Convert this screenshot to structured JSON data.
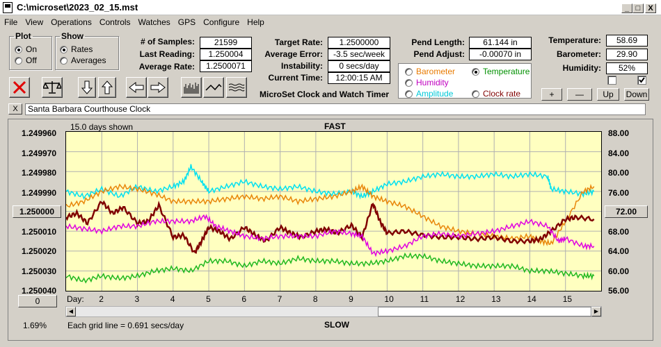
{
  "window": {
    "title": "C:\\microset\\2023_02_15.mst",
    "minimize": "_",
    "maximize": "□",
    "close": "X"
  },
  "menu": [
    "File",
    "View",
    "Operations",
    "Controls",
    "Watches",
    "GPS",
    "Configure",
    "Help"
  ],
  "plot_group": {
    "title": "Plot",
    "options": [
      "On",
      "Off"
    ],
    "selected": "On"
  },
  "show_group": {
    "title": "Show",
    "options": [
      "Rates",
      "Averages"
    ],
    "selected": "Rates"
  },
  "stats": {
    "samples_label": "# of Samples:",
    "samples": "21599",
    "last_reading_label": "Last Reading:",
    "last_reading": "1.250004",
    "average_rate_label": "Average Rate:",
    "average_rate": "1.2500071",
    "target_rate_label": "Target Rate:",
    "target_rate": "1.2500000",
    "average_error_label": "Average Error:",
    "average_error": "-3.5 sec/week",
    "instability_label": "Instability:",
    "instability": "0 secs/day",
    "current_time_label": "Current Time:",
    "current_time": "12:00:15 AM",
    "pend_length_label": "Pend Length:",
    "pend_length": "61.144 in",
    "pend_adjust_label": "Pend Adjust:",
    "pend_adjust": "-0.00070 in",
    "temperature_label": "Temperature:",
    "temperature": "58.69",
    "barometer_label": "Barometer:",
    "barometer": "29.90",
    "humidity_label": "Humidity:",
    "humidity": "52%"
  },
  "app_name": "MicroSet Clock and Watch Timer",
  "secondary_selector": {
    "options": [
      {
        "label": "Barometer",
        "color": "#e87a00",
        "selected": false
      },
      {
        "label": "Temperature",
        "color": "#009000",
        "selected": true
      },
      {
        "label": "Humidity",
        "color": "#c000c0",
        "selected": false
      },
      {
        "label": "Amplitude",
        "color": "#00c8d8",
        "selected": false
      },
      {
        "label": "Clock rate",
        "color": "#800000",
        "selected": false
      }
    ]
  },
  "adjust_buttons": [
    "+",
    "—",
    "Up",
    "Down"
  ],
  "checkboxes": [
    false,
    true
  ],
  "clock_name": "Santa Barbara Courthouse Clock",
  "clear_button": "X",
  "chart_data": {
    "type": "line",
    "top_label": "FAST",
    "bottom_label": "SLOW",
    "days_shown": "15.0 days shown",
    "grid_note": "Each grid line = 0.691 secs/day",
    "x_label": "Day:",
    "x_ticks": [
      "2",
      "3",
      "4",
      "5",
      "6",
      "7",
      "8",
      "9",
      "10",
      "11",
      "12",
      "13",
      "14",
      "15"
    ],
    "xlim": [
      1.0,
      16.0
    ],
    "y_left_ticks": [
      "1.249960",
      "1.249970",
      "1.249980",
      "1.249990",
      "1.250000",
      "1.250010",
      "1.250020",
      "1.250030",
      "1.250040"
    ],
    "y_left_center": "1.250000",
    "ylim_left": [
      1.24996,
      1.25004
    ],
    "y_right_ticks": [
      "88.00",
      "84.00",
      "80.00",
      "76.00",
      "72.00",
      "68.00",
      "64.00",
      "60.00",
      "56.00"
    ],
    "y_right_center": "72.00",
    "ylim_right": [
      56,
      88
    ],
    "left_button": "0",
    "corner_value": "1.69%",
    "series": [
      {
        "name": "Amplitude",
        "color": "#00e0f0",
        "axis": "right",
        "x": [
          1,
          1.5,
          2,
          2.5,
          3,
          3.5,
          4,
          4.3,
          4.5,
          4.8,
          5,
          5.5,
          6,
          6.5,
          7,
          7.5,
          8,
          8.5,
          9,
          9.3,
          9.6,
          10,
          10.5,
          11,
          11.5,
          12,
          12.5,
          13,
          13.5,
          14,
          14.5,
          14.6,
          15,
          15.5,
          15.8
        ],
        "y": [
          76,
          75,
          76.5,
          75,
          77,
          76,
          77,
          78,
          81,
          78,
          76,
          77,
          78,
          77,
          76.5,
          77,
          76,
          75.5,
          76,
          75,
          76,
          77.5,
          78,
          79,
          79.5,
          79,
          79,
          79.5,
          79,
          79.5,
          79,
          76.5,
          76,
          75.5,
          76
        ]
      },
      {
        "name": "Barometer",
        "color": "#e8860a",
        "axis": "right",
        "x": [
          1,
          1.5,
          2,
          2.5,
          3,
          3.5,
          4,
          4.5,
          5,
          5.5,
          6,
          6.5,
          7,
          7.5,
          8,
          8.5,
          9,
          9.3,
          9.6,
          10,
          10.5,
          11,
          11.5,
          12,
          12.5,
          13,
          13.5,
          14,
          14.3,
          14.6,
          15,
          15.5,
          15.8
        ],
        "y": [
          73,
          74,
          76,
          77,
          76.5,
          75.5,
          74,
          74,
          74,
          74.5,
          75,
          74.5,
          75,
          74,
          74.5,
          75,
          76,
          77,
          75,
          74,
          73,
          71,
          69,
          68,
          67.5,
          67,
          66.5,
          67,
          66,
          65.5,
          70,
          76,
          77
        ]
      },
      {
        "name": "Clock rate",
        "color": "#800000",
        "axis": "left",
        "x": [
          1,
          1.3,
          1.6,
          2,
          2.3,
          2.6,
          3,
          3.3,
          3.6,
          4,
          4.3,
          4.6,
          4.8,
          5,
          5.3,
          5.6,
          6,
          6.3,
          6.6,
          7,
          7.3,
          7.6,
          8,
          8.3,
          8.6,
          9,
          9.3,
          9.6,
          9.8,
          10,
          10.5,
          11,
          11.5,
          12,
          12.5,
          13,
          13.5,
          14,
          14.3,
          14.6,
          15,
          15.3,
          15.8
        ],
        "y": [
          1.250003,
          1.250001,
          1.250006,
          1.249995,
          1.250001,
          1.249998,
          1.250006,
          1.250005,
          1.249997,
          1.250013,
          1.250012,
          1.250021,
          1.250015,
          1.250008,
          1.25001,
          1.250014,
          1.250008,
          1.250012,
          1.250015,
          1.250008,
          1.250011,
          1.250013,
          1.25001,
          1.250009,
          1.250011,
          1.250007,
          1.250013,
          1.249996,
          1.250005,
          1.250011,
          1.25001,
          1.250012,
          1.250013,
          1.250013,
          1.250014,
          1.250013,
          1.250015,
          1.250015,
          1.250014,
          1.25001,
          1.250004,
          1.250003,
          1.250004
        ]
      },
      {
        "name": "Humidity",
        "color": "#e000e0",
        "axis": "right",
        "x": [
          1,
          1.5,
          2,
          2.5,
          3,
          3.5,
          4,
          4.5,
          4.9,
          5.2,
          5.6,
          6,
          6.5,
          7,
          7.5,
          8,
          8.5,
          9,
          9.3,
          9.6,
          10,
          10.5,
          11,
          11.5,
          12,
          12.5,
          13,
          13.5,
          14,
          14.5,
          14.8,
          15,
          15.5,
          15.8
        ],
        "y": [
          69,
          68.5,
          68,
          69,
          69,
          70,
          70,
          70,
          71,
          69,
          68,
          67,
          66.5,
          67,
          67,
          67,
          68,
          67.5,
          67,
          63.5,
          64,
          65,
          67,
          67.5,
          67,
          67.5,
          68,
          69,
          70,
          69,
          66,
          66.5,
          65,
          65
        ]
      },
      {
        "name": "Temperature",
        "color": "#20b820",
        "axis": "right",
        "x": [
          1,
          1.5,
          2,
          2.5,
          3,
          3.5,
          4,
          4.5,
          5,
          5.5,
          6,
          6.5,
          7,
          7.5,
          8,
          8.5,
          9,
          9.5,
          10,
          10.5,
          11,
          11.5,
          12,
          12.5,
          13,
          13.5,
          14,
          14.5,
          15,
          15.5,
          15.8
        ],
        "y": [
          59,
          58,
          59,
          58.5,
          59,
          60,
          60.5,
          60,
          62,
          62,
          61,
          62,
          61.5,
          62.5,
          62,
          62,
          61.5,
          61.5,
          62,
          63,
          63,
          62,
          61.5,
          61,
          61,
          61,
          60,
          60,
          59.5,
          59,
          59
        ]
      }
    ]
  }
}
